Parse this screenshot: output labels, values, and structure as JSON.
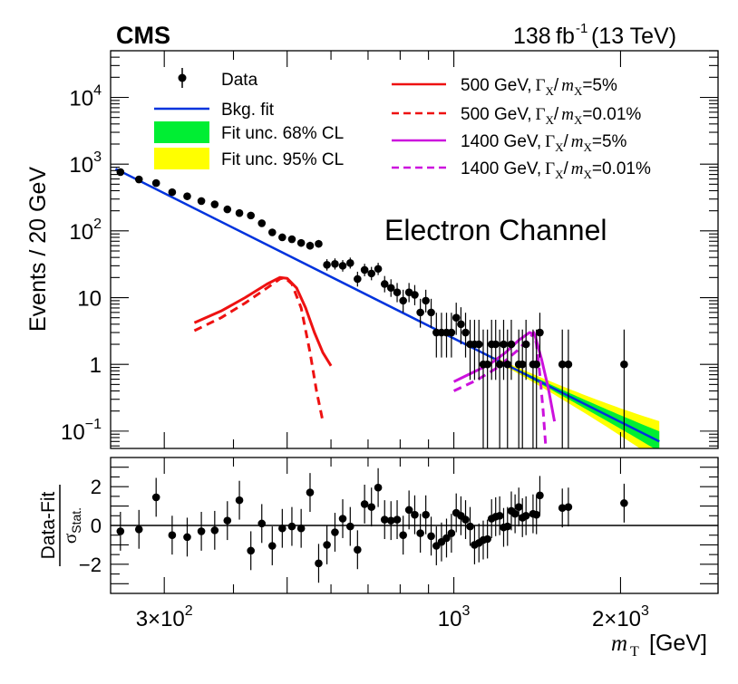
{
  "header": {
    "experiment": "CMS",
    "lumi_value": "138",
    "lumi_unit": "fb",
    "lumi_exp": "-1",
    "energy": "(13 TeV)"
  },
  "colors": {
    "bkg": "#0033dd",
    "band68": "#00ee33",
    "band95": "#ffff00",
    "sig500": "#ee1111",
    "sig1400": "#cc11dd",
    "data": "#000000"
  },
  "chart_data": [
    {
      "type": "scatter",
      "panel": "main",
      "title": "Electron Channel",
      "xlabel_sym": "m",
      "xlabel_sub": "T",
      "xlabel_unit": "[GeV]",
      "ylabel": "Events / 20 GeV",
      "xscale": "log",
      "yscale": "log",
      "xlim": [
        240,
        3000
      ],
      "ylim": [
        0.055,
        50000
      ],
      "ticks": [
        {
          "base": "10",
          "exp": "4",
          "value": 10000
        },
        {
          "base": "10",
          "exp": "3",
          "value": 1000
        },
        {
          "base": "10",
          "exp": "2",
          "value": 100
        },
        {
          "base": "10",
          "exp": "",
          "value": 10
        },
        {
          "base": "1",
          "exp": "",
          "value": 1
        },
        {
          "base": "10",
          "exp": "−1",
          "value": 0.1
        }
      ],
      "legend": {
        "data": "Data",
        "bkg": "Bkg. fit",
        "unc68": "Fit unc. 68% CL",
        "unc95": "Fit unc. 95% CL",
        "sig1_mass": "500 GeV,",
        "sig1_width": "=5%",
        "sig2_mass": "500 GeV,",
        "sig2_width": "=0.01%",
        "sig3_mass": "1400 GeV,",
        "sig3_width": "=5%",
        "sig4_mass": "1400 GeV,",
        "sig4_width": "=0.01%",
        "gamma": "Γ",
        "sub_x": "X",
        "slash": "/",
        "m": "m"
      },
      "data_points": [
        {
          "x": 250,
          "y": 760
        },
        {
          "x": 270,
          "y": 590
        },
        {
          "x": 290,
          "y": 520
        },
        {
          "x": 310,
          "y": 380
        },
        {
          "x": 330,
          "y": 330
        },
        {
          "x": 350,
          "y": 280
        },
        {
          "x": 370,
          "y": 250
        },
        {
          "x": 390,
          "y": 210
        },
        {
          "x": 410,
          "y": 185
        },
        {
          "x": 430,
          "y": 170
        },
        {
          "x": 450,
          "y": 130
        },
        {
          "x": 470,
          "y": 95
        },
        {
          "x": 490,
          "y": 80
        },
        {
          "x": 510,
          "y": 75
        },
        {
          "x": 530,
          "y": 66
        },
        {
          "x": 550,
          "y": 60
        },
        {
          "x": 570,
          "y": 64
        },
        {
          "x": 590,
          "y": 31
        },
        {
          "x": 610,
          "y": 32
        },
        {
          "x": 630,
          "y": 30
        },
        {
          "x": 650,
          "y": 33
        },
        {
          "x": 670,
          "y": 19
        },
        {
          "x": 690,
          "y": 26
        },
        {
          "x": 710,
          "y": 23
        },
        {
          "x": 730,
          "y": 27
        },
        {
          "x": 750,
          "y": 16
        },
        {
          "x": 770,
          "y": 14
        },
        {
          "x": 790,
          "y": 12
        },
        {
          "x": 810,
          "y": 9
        },
        {
          "x": 830,
          "y": 12
        },
        {
          "x": 850,
          "y": 11
        },
        {
          "x": 870,
          "y": 6
        },
        {
          "x": 890,
          "y": 9
        },
        {
          "x": 910,
          "y": 6
        },
        {
          "x": 930,
          "y": 3
        },
        {
          "x": 950,
          "y": 3
        },
        {
          "x": 970,
          "y": 3
        },
        {
          "x": 990,
          "y": 3
        },
        {
          "x": 1010,
          "y": 5
        },
        {
          "x": 1030,
          "y": 4
        },
        {
          "x": 1050,
          "y": 3
        },
        {
          "x": 1070,
          "y": 2
        },
        {
          "x": 1090,
          "y": 2
        },
        {
          "x": 1110,
          "y": 2
        },
        {
          "x": 1130,
          "y": 1
        },
        {
          "x": 1150,
          "y": 1
        },
        {
          "x": 1170,
          "y": 2
        },
        {
          "x": 1190,
          "y": 2
        },
        {
          "x": 1210,
          "y": 1
        },
        {
          "x": 1230,
          "y": 2
        },
        {
          "x": 1250,
          "y": 1
        },
        {
          "x": 1270,
          "y": 2
        },
        {
          "x": 1310,
          "y": 1
        },
        {
          "x": 1330,
          "y": 1
        },
        {
          "x": 1350,
          "y": 2
        },
        {
          "x": 1390,
          "y": 1
        },
        {
          "x": 1410,
          "y": 1
        },
        {
          "x": 1430,
          "y": 3
        },
        {
          "x": 1570,
          "y": 1
        },
        {
          "x": 1610,
          "y": 1
        },
        {
          "x": 2030,
          "y": 1
        }
      ],
      "bkg_fit": {
        "x_start": 245,
        "y_start": 850,
        "x_end": 2350,
        "y_end": 0.07
      },
      "band68_half_width": {
        "x_from": 1050,
        "frac_at_end": 0.35
      },
      "band95_half_width": {
        "x_from": 1000,
        "frac_at_end": 0.7
      },
      "signal_500_w5": [
        {
          "x": 340,
          "y": 4.2
        },
        {
          "x": 380,
          "y": 6.3
        },
        {
          "x": 420,
          "y": 10
        },
        {
          "x": 460,
          "y": 16
        },
        {
          "x": 485,
          "y": 20
        },
        {
          "x": 500,
          "y": 19.5
        },
        {
          "x": 520,
          "y": 14
        },
        {
          "x": 540,
          "y": 7
        },
        {
          "x": 560,
          "y": 3
        },
        {
          "x": 580,
          "y": 1.5
        },
        {
          "x": 600,
          "y": 0.95
        }
      ],
      "signal_500_w001": [
        {
          "x": 340,
          "y": 3.2
        },
        {
          "x": 380,
          "y": 5
        },
        {
          "x": 420,
          "y": 8.3
        },
        {
          "x": 460,
          "y": 14
        },
        {
          "x": 485,
          "y": 19
        },
        {
          "x": 495,
          "y": 20
        },
        {
          "x": 510,
          "y": 16
        },
        {
          "x": 530,
          "y": 7
        },
        {
          "x": 550,
          "y": 1.5
        },
        {
          "x": 565,
          "y": 0.4
        },
        {
          "x": 580,
          "y": 0.14
        }
      ],
      "signal_1400_w5": [
        {
          "x": 1000,
          "y": 0.55
        },
        {
          "x": 1080,
          "y": 0.75
        },
        {
          "x": 1160,
          "y": 1
        },
        {
          "x": 1240,
          "y": 1.5
        },
        {
          "x": 1310,
          "y": 2.3
        },
        {
          "x": 1370,
          "y": 3
        },
        {
          "x": 1400,
          "y": 2.8
        },
        {
          "x": 1440,
          "y": 1.2
        },
        {
          "x": 1480,
          "y": 0.45
        },
        {
          "x": 1520,
          "y": 0.14
        }
      ],
      "signal_1400_w001": [
        {
          "x": 1000,
          "y": 0.4
        },
        {
          "x": 1100,
          "y": 0.58
        },
        {
          "x": 1200,
          "y": 0.9
        },
        {
          "x": 1300,
          "y": 1.6
        },
        {
          "x": 1370,
          "y": 2.5
        },
        {
          "x": 1395,
          "y": 3
        },
        {
          "x": 1410,
          "y": 2
        },
        {
          "x": 1430,
          "y": 0.7
        },
        {
          "x": 1450,
          "y": 0.2
        },
        {
          "x": 1465,
          "y": 0.06
        }
      ]
    },
    {
      "type": "scatter",
      "panel": "ratio",
      "ylabel_top": "Data-Fit",
      "ylabel_bottom_sym": "σ",
      "ylabel_bottom_sub": "Stat.",
      "ylim": [
        -3.5,
        3.5
      ],
      "yticks": [
        {
          "label": "2",
          "value": 2
        },
        {
          "label": "0",
          "value": 0
        },
        {
          "label": "−2",
          "value": -2
        }
      ],
      "xticks": [
        {
          "mant": "3×10",
          "exp": "2",
          "value": 300
        },
        {
          "mant": "10",
          "exp": "3",
          "value": 1000
        },
        {
          "mant": "2×10",
          "exp": "3",
          "value": 2000
        }
      ],
      "pulls": [
        {
          "x": 250,
          "y": -0.3
        },
        {
          "x": 270,
          "y": -0.2
        },
        {
          "x": 290,
          "y": 1.45
        },
        {
          "x": 310,
          "y": -0.5
        },
        {
          "x": 330,
          "y": -0.6
        },
        {
          "x": 350,
          "y": -0.3
        },
        {
          "x": 370,
          "y": -0.25
        },
        {
          "x": 390,
          "y": 0.25
        },
        {
          "x": 410,
          "y": 1.3
        },
        {
          "x": 430,
          "y": -1.3
        },
        {
          "x": 450,
          "y": 0.1
        },
        {
          "x": 470,
          "y": -1.05
        },
        {
          "x": 490,
          "y": -0.15
        },
        {
          "x": 510,
          "y": -0.05
        },
        {
          "x": 530,
          "y": -0.15
        },
        {
          "x": 550,
          "y": 1.7
        },
        {
          "x": 570,
          "y": -1.95
        },
        {
          "x": 590,
          "y": -1.0
        },
        {
          "x": 610,
          "y": -0.35
        },
        {
          "x": 630,
          "y": 0.35
        },
        {
          "x": 650,
          "y": -0.05
        },
        {
          "x": 670,
          "y": -1.25
        },
        {
          "x": 690,
          "y": 1.1
        },
        {
          "x": 710,
          "y": 0.95
        },
        {
          "x": 730,
          "y": 1.95
        },
        {
          "x": 750,
          "y": 0.3
        },
        {
          "x": 770,
          "y": 0.25
        },
        {
          "x": 790,
          "y": 0.3
        },
        {
          "x": 810,
          "y": -0.5
        },
        {
          "x": 830,
          "y": 0.8
        },
        {
          "x": 850,
          "y": 0.55
        },
        {
          "x": 870,
          "y": -0.4
        },
        {
          "x": 890,
          "y": 0.55
        },
        {
          "x": 910,
          "y": -0.55
        },
        {
          "x": 930,
          "y": -1.05
        },
        {
          "x": 950,
          "y": -0.85
        },
        {
          "x": 970,
          "y": -0.65
        },
        {
          "x": 990,
          "y": -0.4
        },
        {
          "x": 1010,
          "y": 0.65
        },
        {
          "x": 1030,
          "y": 0.5
        },
        {
          "x": 1050,
          "y": 0.3
        },
        {
          "x": 1070,
          "y": -0.05
        },
        {
          "x": 1090,
          "y": -1.0
        },
        {
          "x": 1110,
          "y": -0.9
        },
        {
          "x": 1130,
          "y": -0.75
        },
        {
          "x": 1150,
          "y": -0.7
        },
        {
          "x": 1170,
          "y": 0.35
        },
        {
          "x": 1190,
          "y": 0.45
        },
        {
          "x": 1210,
          "y": 0.5
        },
        {
          "x": 1230,
          "y": -0.1
        },
        {
          "x": 1250,
          "y": -0.05
        },
        {
          "x": 1270,
          "y": 0.75
        },
        {
          "x": 1290,
          "y": 0.6
        },
        {
          "x": 1310,
          "y": 0.95
        },
        {
          "x": 1330,
          "y": 0.4
        },
        {
          "x": 1350,
          "y": 0.5
        },
        {
          "x": 1390,
          "y": 0.6
        },
        {
          "x": 1410,
          "y": 0.55
        },
        {
          "x": 1430,
          "y": 1.55
        },
        {
          "x": 1570,
          "y": 0.9
        },
        {
          "x": 1610,
          "y": 0.95
        },
        {
          "x": 2030,
          "y": 1.15
        }
      ]
    }
  ]
}
